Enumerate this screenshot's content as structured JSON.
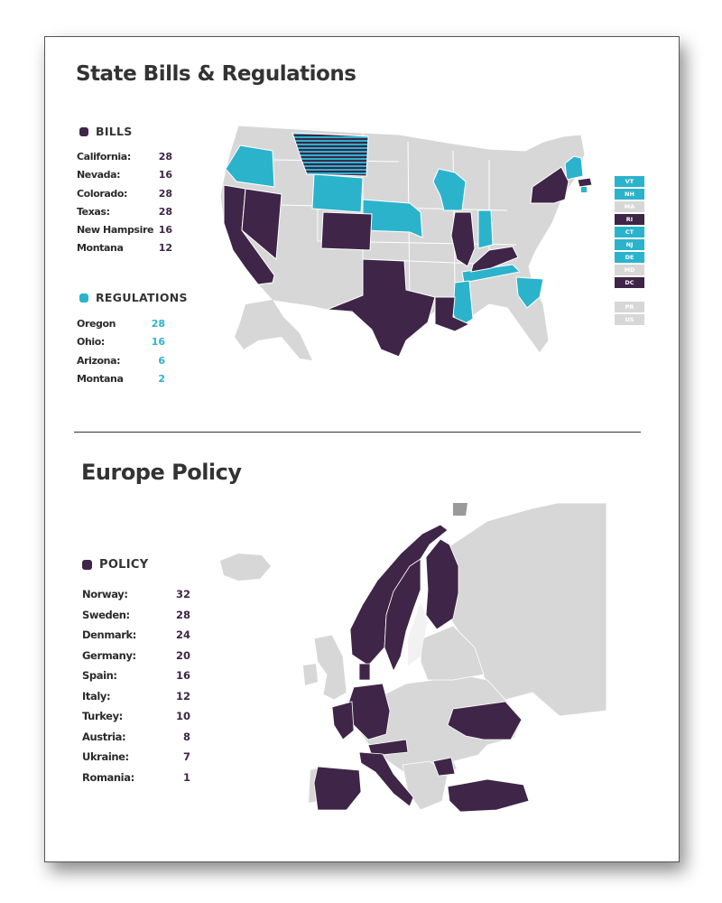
{
  "colors": {
    "bills": "#3f2547",
    "regulations": "#2bb3cc",
    "base": "#d7d7d7",
    "divider": "#3d2a4a"
  },
  "us_section": {
    "title": "State Bills & Regulations",
    "bills_label": "BILLS",
    "bills": [
      {
        "name": "California:",
        "value": "28"
      },
      {
        "name": "Nevada:",
        "value": "16"
      },
      {
        "name": "Colorado:",
        "value": "28"
      },
      {
        "name": "Texas:",
        "value": "28"
      },
      {
        "name": "New Hampsire",
        "value": "16"
      },
      {
        "name": "Montana",
        "value": "12"
      }
    ],
    "regulations_label": "REGULATIONS",
    "regulations": [
      {
        "name": "Oregon",
        "value": "28"
      },
      {
        "name": "Ohio:",
        "value": "16"
      },
      {
        "name": "Arizona:",
        "value": "6"
      },
      {
        "name": "Montana",
        "value": "2"
      }
    ],
    "small_states": [
      {
        "code": "VT",
        "status": "regulation"
      },
      {
        "code": "NH",
        "status": "regulation"
      },
      {
        "code": "MA",
        "status": "none"
      },
      {
        "code": "RI",
        "status": "bill"
      },
      {
        "code": "CT",
        "status": "regulation"
      },
      {
        "code": "NJ",
        "status": "regulation"
      },
      {
        "code": "DE",
        "status": "regulation"
      },
      {
        "code": "MD",
        "status": "none"
      },
      {
        "code": "DC",
        "status": "bill"
      },
      {
        "code": "PR",
        "status": "none"
      },
      {
        "code": "US",
        "status": "none"
      }
    ]
  },
  "eu_section": {
    "title": "Europe Policy",
    "policy_label": "POLICY",
    "policy": [
      {
        "name": "Norway:",
        "value": "32"
      },
      {
        "name": "Sweden:",
        "value": "28"
      },
      {
        "name": "Denmark:",
        "value": "24"
      },
      {
        "name": "Germany:",
        "value": "20"
      },
      {
        "name": "Spain:",
        "value": "16"
      },
      {
        "name": "Italy:",
        "value": "12"
      },
      {
        "name": "Turkey:",
        "value": "10"
      },
      {
        "name": "Austria:",
        "value": "8"
      },
      {
        "name": "Ukraine:",
        "value": "7"
      },
      {
        "name": "Romania:",
        "value": "1"
      }
    ]
  }
}
